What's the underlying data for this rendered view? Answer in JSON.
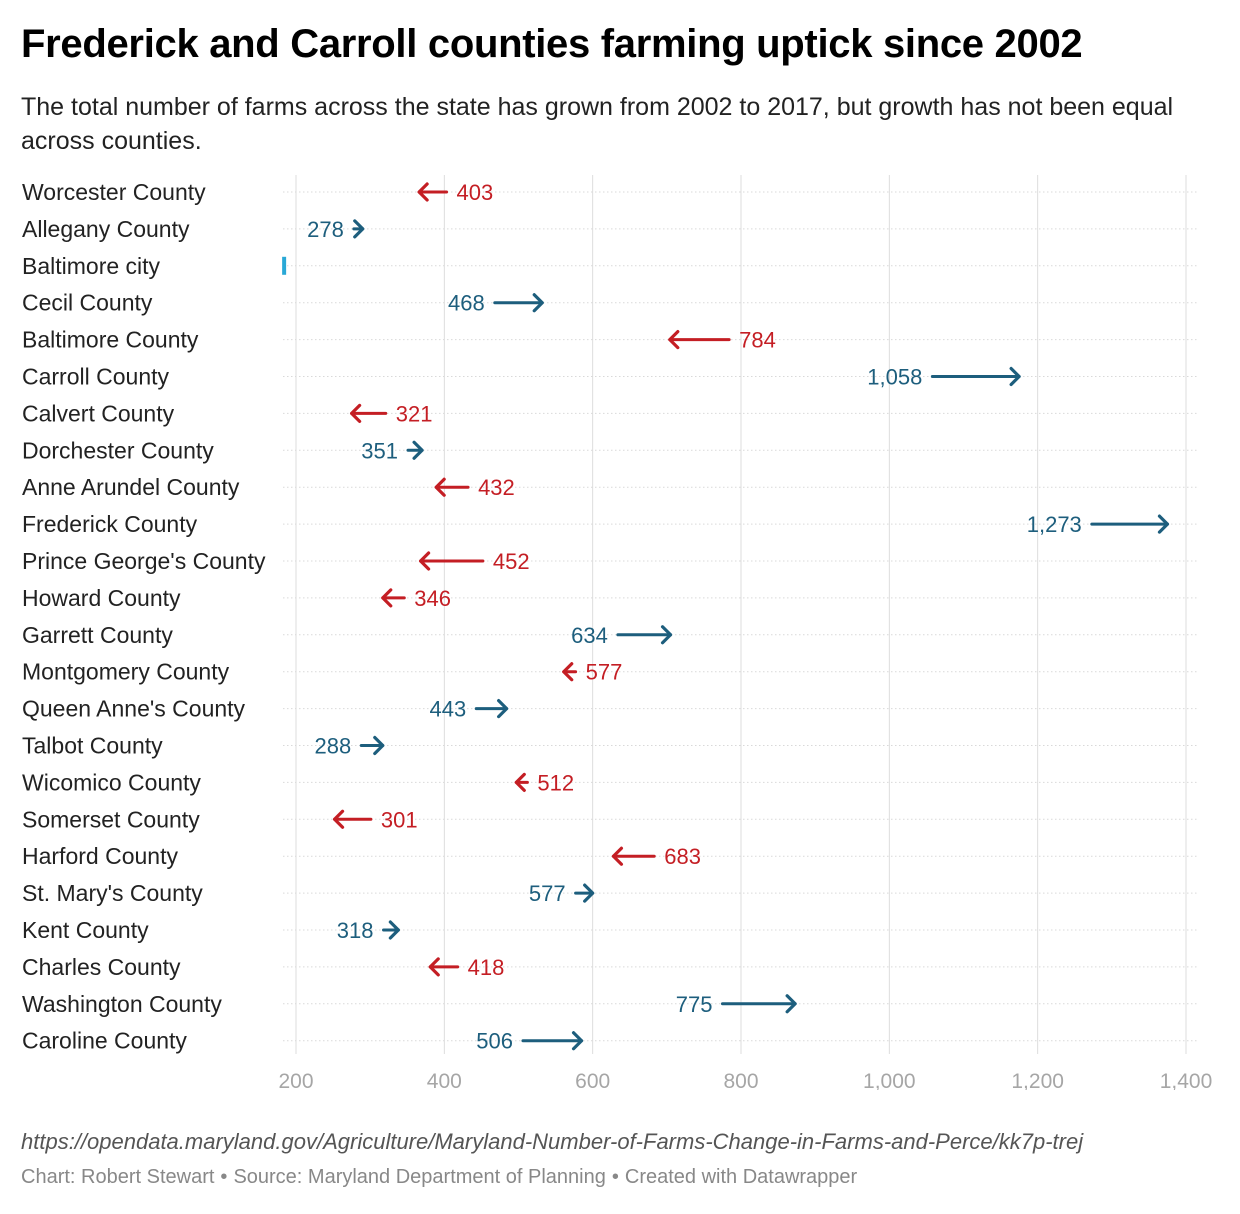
{
  "header": {
    "title": "Frederick and Carroll counties farming uptick since 2002",
    "subtitle": "The total number of farms across the state has grown from 2002 to 2017, but growth has not been equal across counties."
  },
  "chart_data": {
    "type": "arrow",
    "title": "Frederick and Carroll counties farming uptick since 2002",
    "subtitle": "The total number of farms across the state has grown from 2002 to 2017, but growth has not been equal across counties.",
    "x_ticks": [
      200,
      400,
      600,
      800,
      1000,
      1200,
      1400
    ],
    "x_tick_labels": [
      "200",
      "400",
      "600",
      "800",
      "1,000",
      "1,200",
      "1,400"
    ],
    "xlim": [
      185,
      1400
    ],
    "grid": true,
    "colors": {
      "increase": "#1d5e7d",
      "decrease": "#c41e24",
      "no_change": "#29a8d6"
    },
    "rows": [
      {
        "county": "Worcester County",
        "start": 403,
        "end": 366,
        "label": "403"
      },
      {
        "county": "Allegany County",
        "start": 278,
        "end": 290,
        "label": "278"
      },
      {
        "county": "Baltimore city",
        "start": 184,
        "end": 184,
        "label": ""
      },
      {
        "county": "Cecil County",
        "start": 468,
        "end": 532,
        "label": "468"
      },
      {
        "county": "Baltimore County",
        "start": 784,
        "end": 704,
        "label": "784"
      },
      {
        "county": "Carroll County",
        "start": 1058,
        "end": 1175,
        "label": "1,058"
      },
      {
        "county": "Calvert County",
        "start": 321,
        "end": 275,
        "label": "321"
      },
      {
        "county": "Dorchester County",
        "start": 351,
        "end": 370,
        "label": "351"
      },
      {
        "county": "Anne Arundel County",
        "start": 432,
        "end": 389,
        "label": "432"
      },
      {
        "county": "Frederick County",
        "start": 1273,
        "end": 1375,
        "label": "1,273"
      },
      {
        "county": "Prince George's County",
        "start": 452,
        "end": 368,
        "label": "452"
      },
      {
        "county": "Howard County",
        "start": 346,
        "end": 317,
        "label": "346"
      },
      {
        "county": "Garrett County",
        "start": 634,
        "end": 705,
        "label": "634"
      },
      {
        "county": "Montgomery County",
        "start": 577,
        "end": 561,
        "label": "577"
      },
      {
        "county": "Queen Anne's County",
        "start": 443,
        "end": 484,
        "label": "443"
      },
      {
        "county": "Talbot County",
        "start": 288,
        "end": 317,
        "label": "288"
      },
      {
        "county": "Wicomico County",
        "start": 512,
        "end": 497,
        "label": "512"
      },
      {
        "county": "Somerset County",
        "start": 301,
        "end": 252,
        "label": "301"
      },
      {
        "county": "Harford County",
        "start": 683,
        "end": 628,
        "label": "683"
      },
      {
        "county": "St. Mary's County",
        "start": 577,
        "end": 600,
        "label": "577"
      },
      {
        "county": "Kent County",
        "start": 318,
        "end": 338,
        "label": "318"
      },
      {
        "county": "Charles County",
        "start": 418,
        "end": 381,
        "label": "418"
      },
      {
        "county": "Washington County",
        "start": 775,
        "end": 873,
        "label": "775"
      },
      {
        "county": "Caroline County",
        "start": 506,
        "end": 585,
        "label": "506"
      }
    ]
  },
  "notes": "https://opendata.maryland.gov/Agriculture/Maryland-Number-of-Farms-Change-in-Farms-and-Perce/kk7p-trej",
  "footer": {
    "chart_credit": "Chart: Robert Stewart",
    "source": "Source: Maryland Department of Planning",
    "tool": "Created with Datawrapper",
    "separator": "•"
  }
}
